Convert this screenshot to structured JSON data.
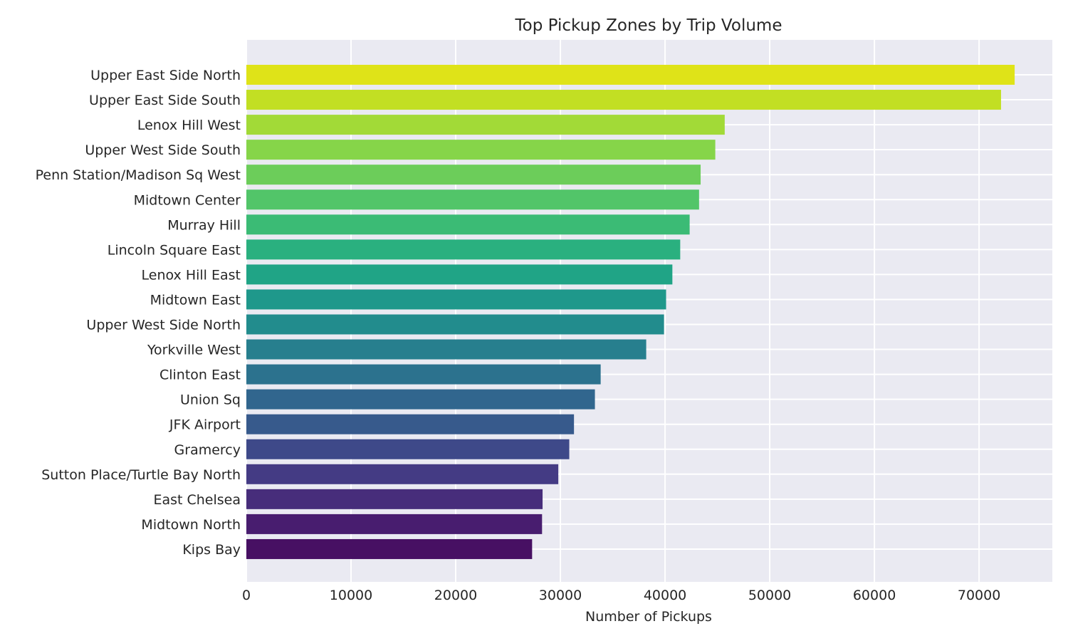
{
  "chart_data": {
    "type": "bar",
    "orientation": "horizontal",
    "title": "Top Pickup Zones by Trip Volume",
    "xlabel": "Number of Pickups",
    "ylabel": "",
    "xlim": [
      0,
      77000
    ],
    "xticks": [
      0,
      10000,
      20000,
      30000,
      40000,
      50000,
      60000,
      70000
    ],
    "grid": true,
    "background": "#eaeaf2",
    "categories": [
      "Upper East Side North",
      "Upper East Side South",
      "Lenox Hill West",
      "Upper West Side South",
      "Penn Station/Madison Sq West",
      "Midtown Center",
      "Murray Hill",
      "Lincoln Square East",
      "Lenox Hill East",
      "Midtown East",
      "Upper West Side North",
      "Yorkville West",
      "Clinton East",
      "Union Sq",
      "JFK Airport",
      "Gramercy",
      "Sutton Place/Turtle Bay North",
      "East Chelsea",
      "Midtown North",
      "Kips Bay"
    ],
    "values": [
      73400,
      72100,
      45700,
      44800,
      43400,
      43250,
      42350,
      41450,
      40700,
      40100,
      39900,
      38200,
      33850,
      33300,
      31300,
      30850,
      29800,
      28300,
      28250,
      27300
    ],
    "colors": [
      "#dfe318",
      "#c2df23",
      "#a2da37",
      "#86d549",
      "#6ccd5a",
      "#52c569",
      "#3bbb75",
      "#2ab07f",
      "#20a486",
      "#1f988b",
      "#228c8d",
      "#277f8e",
      "#2c728e",
      "#31668e",
      "#375a8c",
      "#3e4989",
      "#443b84",
      "#472d7b",
      "#481d6f",
      "#471063"
    ]
  }
}
